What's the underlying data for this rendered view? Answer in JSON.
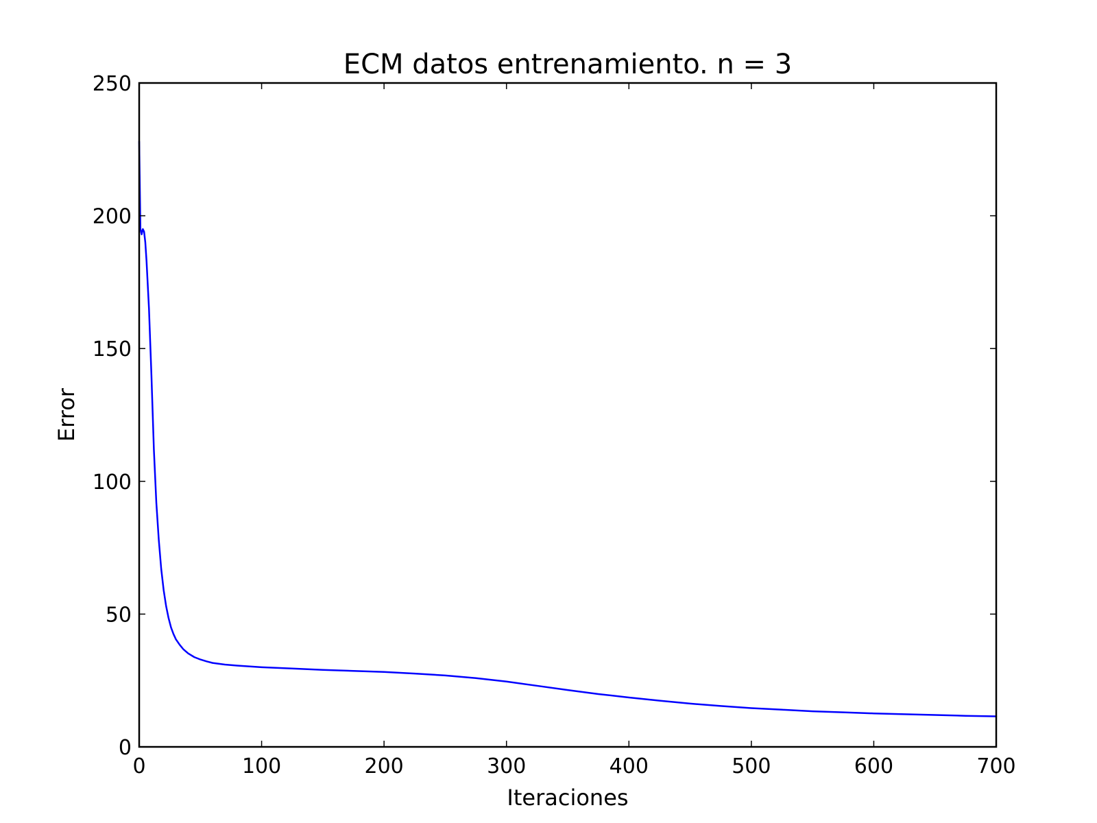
{
  "chart_data": {
    "type": "line",
    "title": "ECM datos entrenamiento. n = 3",
    "xlabel": "Iteraciones",
    "ylabel": "Error",
    "xlim": [
      0,
      700
    ],
    "ylim": [
      0,
      250
    ],
    "xticks": [
      0,
      100,
      200,
      300,
      400,
      500,
      600,
      700
    ],
    "yticks": [
      0,
      50,
      100,
      150,
      200,
      250
    ],
    "grid": false,
    "series": [
      {
        "color": "#0000ff",
        "x": [
          0,
          1,
          2,
          3,
          4,
          5,
          6,
          8,
          10,
          12,
          14,
          16,
          18,
          20,
          22,
          24,
          26,
          28,
          30,
          33,
          36,
          40,
          45,
          50,
          55,
          60,
          70,
          80,
          100,
          125,
          150,
          175,
          200,
          225,
          250,
          275,
          300,
          325,
          350,
          375,
          400,
          425,
          450,
          475,
          500,
          525,
          550,
          575,
          600,
          625,
          650,
          675,
          700
        ],
        "y": [
          228,
          195,
          193,
          195,
          194,
          190,
          183,
          165,
          140,
          112,
          92,
          78,
          67,
          59,
          53,
          48.5,
          45,
          42.5,
          40.5,
          38.5,
          36.8,
          35.2,
          33.8,
          32.9,
          32.2,
          31.6,
          31.0,
          30.6,
          30.0,
          29.5,
          29.0,
          28.6,
          28.2,
          27.6,
          26.9,
          25.9,
          24.6,
          23.0,
          21.4,
          19.9,
          18.6,
          17.4,
          16.3,
          15.4,
          14.6,
          14.0,
          13.4,
          13.0,
          12.6,
          12.3,
          12.0,
          11.7,
          11.5
        ]
      }
    ]
  }
}
